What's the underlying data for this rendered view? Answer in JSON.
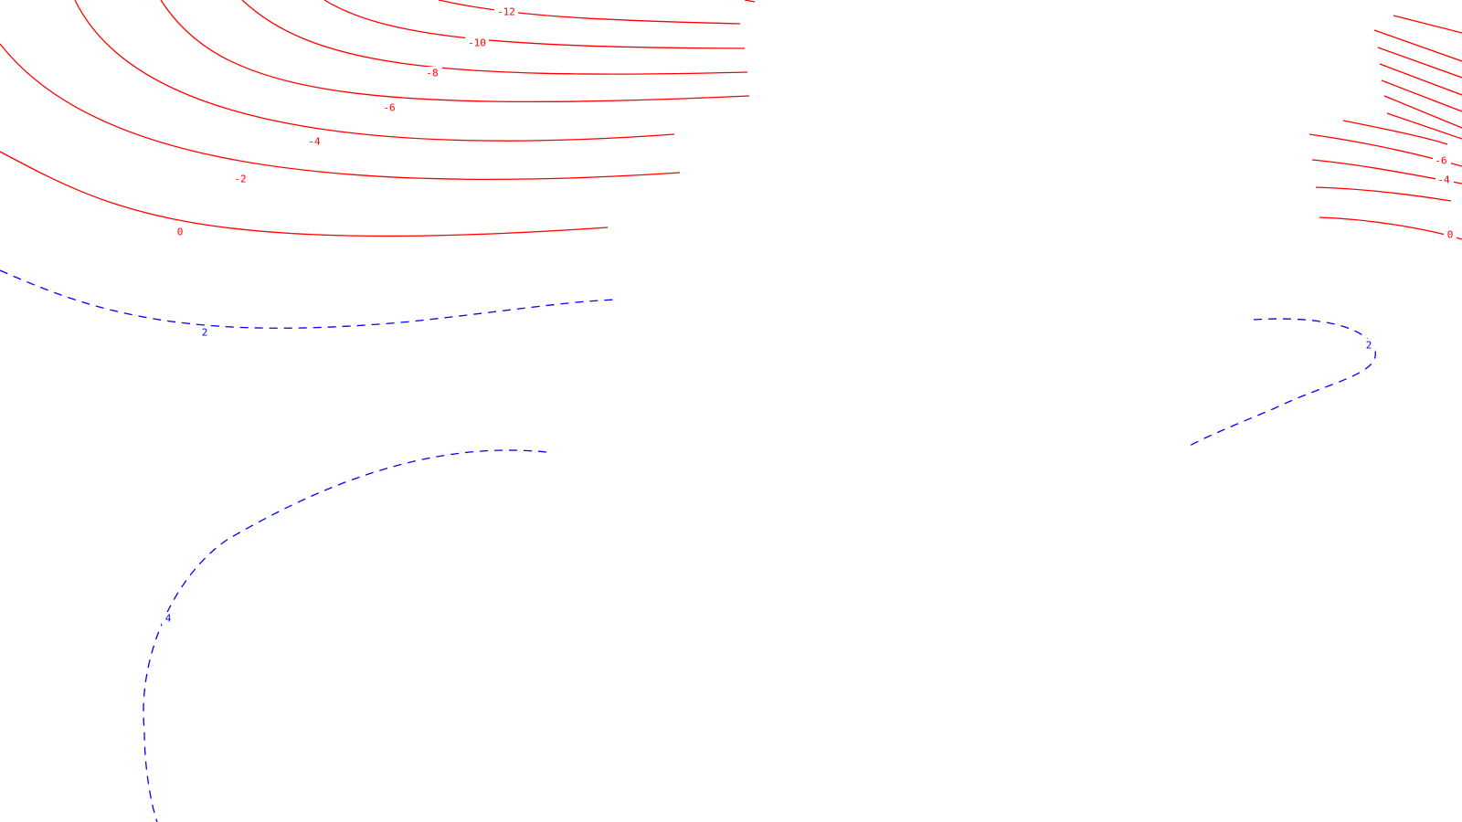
{
  "colors": {
    "background": "#ffffff",
    "negative": "#ff0000",
    "positive": "#0000ff"
  },
  "labels": {
    "neg_left_12": "-12",
    "neg_left_10": "-10",
    "neg_left_8": "-8",
    "neg_left_6": "-6",
    "neg_left_4": "-4",
    "neg_left_2": "-2",
    "zero_left": "0",
    "pos_left_2": "2",
    "pos_left_4": "4",
    "pos_right_2": "2",
    "neg_right_6": "-6",
    "neg_right_4": "-4",
    "zero_right": "0"
  }
}
